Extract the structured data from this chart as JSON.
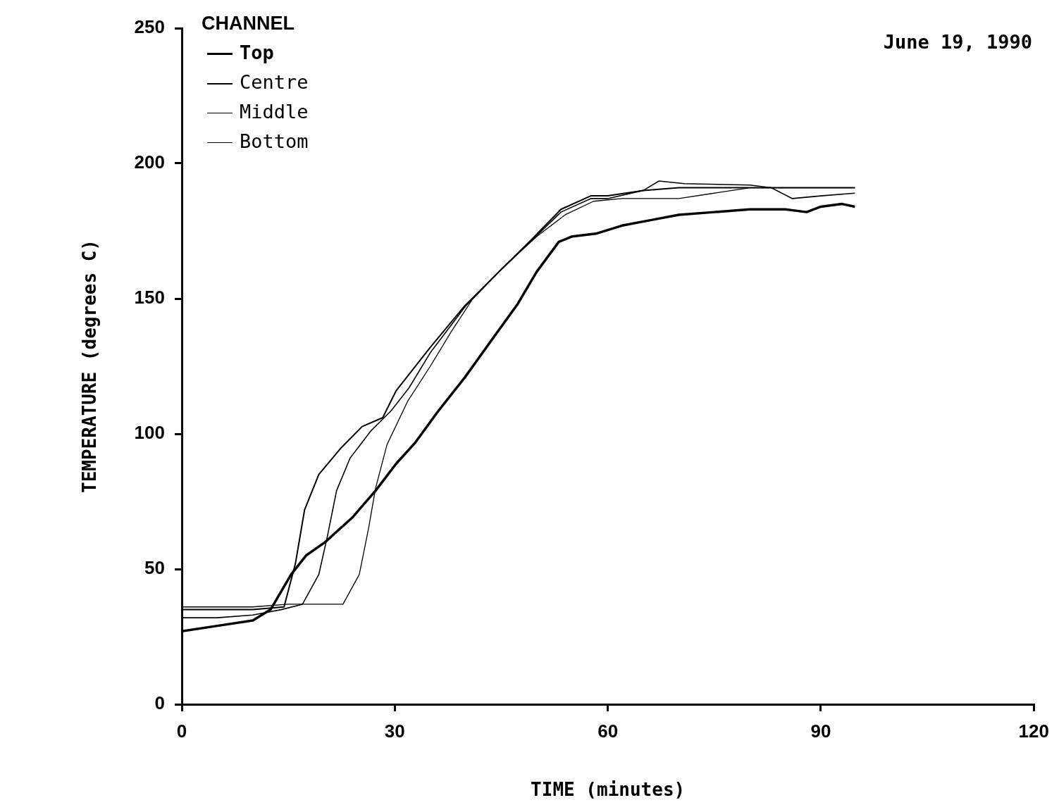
{
  "chart_data": {
    "type": "line",
    "xlabel": "TIME (minutes)",
    "ylabel": "TEMPERATURE (degrees C)",
    "legend_title": "CHANNEL",
    "legend": "top left",
    "grid": false,
    "marker": "none",
    "line_style": "solid",
    "xlim": [
      0,
      120
    ],
    "xticks": [
      0,
      30,
      60,
      90,
      120
    ],
    "ylim": [
      0,
      250
    ],
    "yticks": [
      0,
      50,
      100,
      150,
      200,
      250
    ],
    "annotations": [
      "June 19, 1990"
    ],
    "series": [
      {
        "name": "Top",
        "color": "#000000",
        "x": [
          0,
          5,
          10,
          12.5,
          15.4,
          17.5,
          20.2,
          24,
          27.3,
          30.2,
          32.8,
          36,
          39.9,
          44,
          47.3,
          50,
          53.1,
          55,
          58.3,
          62,
          66,
          70,
          75,
          80,
          85,
          88,
          90,
          93,
          94.8
        ],
        "values": [
          27,
          29,
          31,
          35,
          48,
          55,
          60,
          69,
          79,
          89,
          96.5,
          108,
          121,
          136,
          148,
          160,
          171,
          173,
          174,
          177,
          179,
          181,
          182,
          183,
          183,
          182,
          184,
          185,
          184
        ]
      },
      {
        "name": "Centre",
        "color": "#000000",
        "x": [
          0,
          5,
          10,
          14.4,
          16,
          17.3,
          19.3,
          22.5,
          25.4,
          28.3,
          30.2,
          35,
          39.9,
          44.7,
          49.5,
          53.4,
          57.6,
          60,
          65,
          70,
          80,
          90,
          94.8
        ],
        "values": [
          35,
          35,
          35,
          36,
          52,
          72,
          85,
          95,
          102.7,
          106,
          116,
          132,
          147.5,
          160,
          172.5,
          183,
          188,
          188,
          190,
          191,
          191,
          191,
          191
        ]
      },
      {
        "name": "Middle",
        "color": "#000000",
        "x": [
          0,
          5,
          10,
          14,
          17,
          19.3,
          20.5,
          21.8,
          23.7,
          26.6,
          29.5,
          32,
          35,
          39.9,
          44.7,
          49.5,
          53.4,
          57.6,
          60,
          65,
          67.2,
          70.8,
          80,
          83,
          86,
          90,
          94.8
        ],
        "values": [
          32,
          32,
          33,
          35,
          37,
          48,
          62,
          79,
          91,
          101,
          108.6,
          117,
          130,
          147,
          160,
          172,
          182,
          187,
          187,
          190,
          193.5,
          192.5,
          192,
          191,
          187,
          188,
          189
        ]
      },
      {
        "name": "Bottom",
        "color": "#000000",
        "x": [
          0,
          5,
          10,
          15,
          20,
          22.7,
          25,
          26.3,
          27.3,
          28.9,
          31.8,
          35,
          38,
          41,
          45,
          50,
          54,
          58,
          62,
          70,
          75,
          80,
          90,
          94.8
        ],
        "values": [
          36,
          36,
          36,
          37,
          37,
          37,
          48,
          65,
          80,
          96,
          112,
          125,
          138,
          150,
          161,
          173,
          181,
          186,
          187,
          187,
          189,
          191,
          191,
          191
        ]
      }
    ]
  }
}
